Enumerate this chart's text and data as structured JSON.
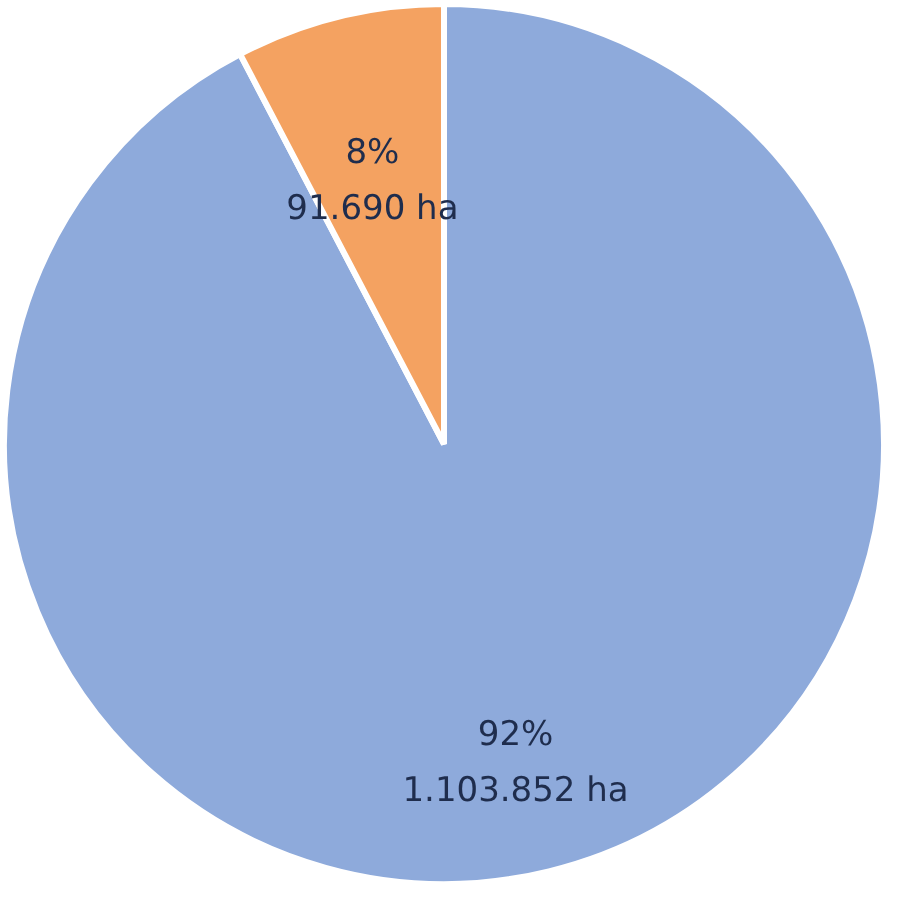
{
  "chart_data": {
    "type": "pie",
    "categories": [
      null,
      null
    ],
    "values": [
      1103852,
      91690
    ],
    "colors": [
      "#8eaadb",
      "#f4a261"
    ],
    "value_labels": [
      "92%\n1.103.852 ha",
      "8%\n91.690 ha"
    ]
  }
}
